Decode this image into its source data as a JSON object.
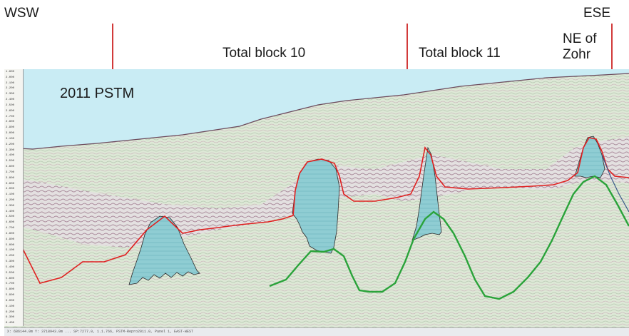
{
  "labels": {
    "wsw": "WSW",
    "ese": "ESE",
    "block10": "Total block 10",
    "block11": "Total block 11",
    "ne_of_zohr": "NE of Zohr",
    "ne_of_zohr_line1": "NE of",
    "ne_of_zohr_line2": "Zohr",
    "survey": "2011 PSTM"
  },
  "depth_ticks": [
    "1.900",
    "2.000",
    "2.100",
    "2.200",
    "2.300",
    "2.400",
    "2.500",
    "2.600",
    "2.700",
    "2.800",
    "2.900",
    "3.000",
    "3.100",
    "3.200",
    "3.300",
    "3.400",
    "3.500",
    "3.600",
    "3.700",
    "3.800",
    "3.900",
    "4.000",
    "4.100",
    "4.200",
    "4.300",
    "4.400",
    "4.500",
    "4.600",
    "4.700",
    "4.800",
    "4.900",
    "5.000",
    "5.100",
    "5.200",
    "5.300",
    "5.400",
    "5.500",
    "5.600",
    "5.700",
    "5.800",
    "5.900",
    "6.000",
    "6.100",
    "6.200",
    "6.300",
    "6.400"
  ],
  "footer_text": "X: 686144.0m  Y: 3718943.0m  ...  SP:7277.0,  1.1.766,  PSTM-Repro2011.0,  Panel 1,  EAST-WEST",
  "colors": {
    "water": "#c9ecf4",
    "seismic_base": "#dfe9d8",
    "red_horizon": "#e02020",
    "green_horizon": "#2aa33a",
    "carbonate_fill": "#7fc6cc",
    "divider": "#d23a3a"
  }
}
